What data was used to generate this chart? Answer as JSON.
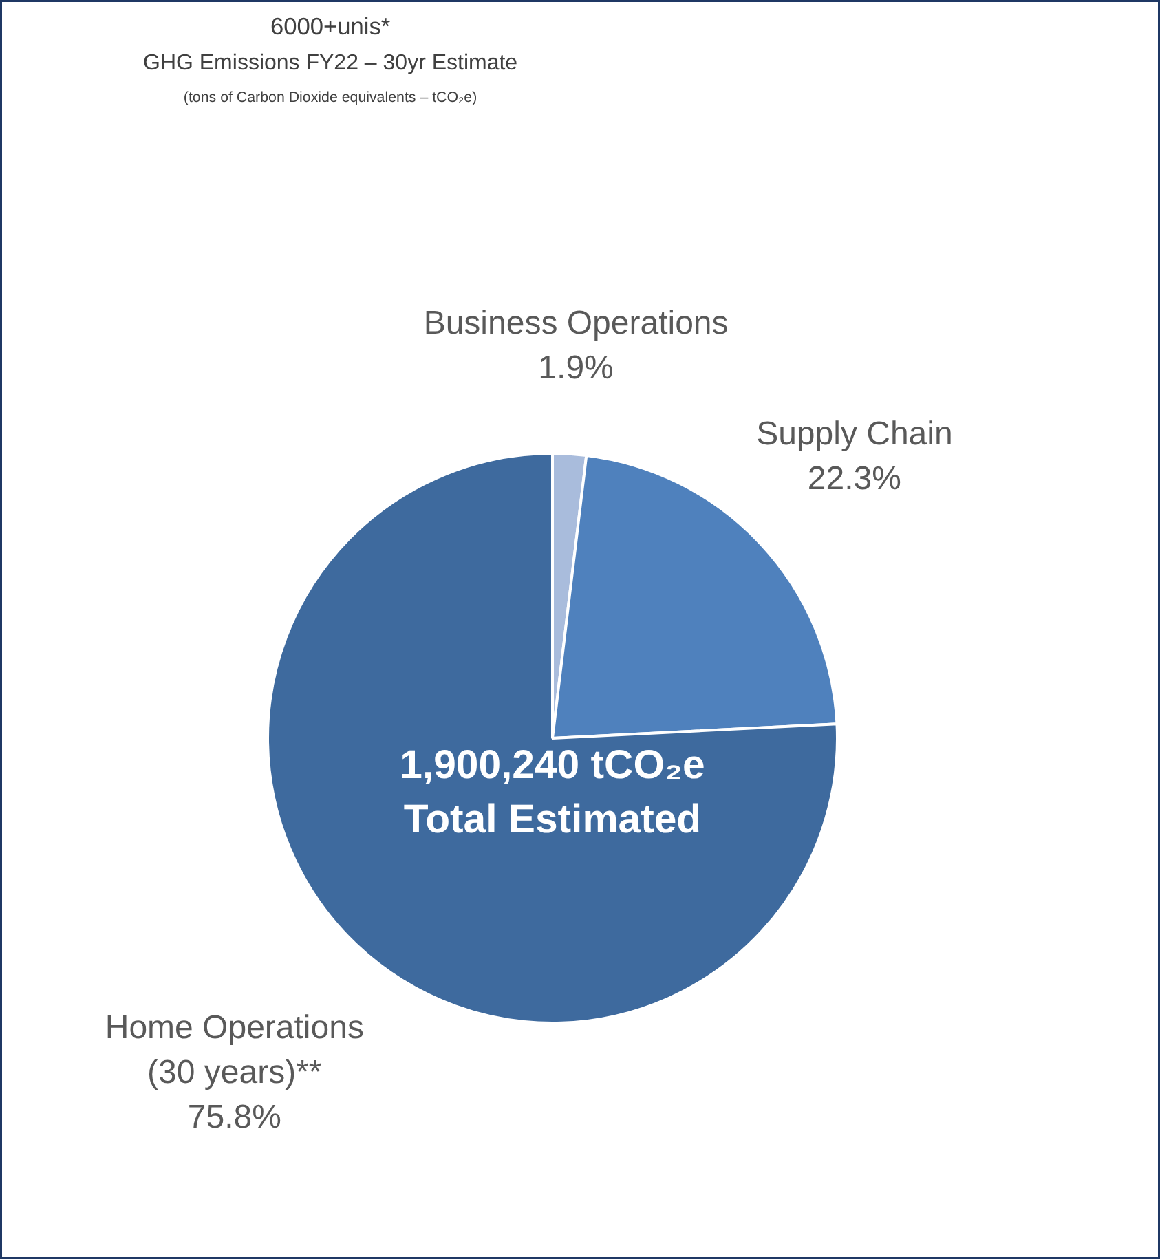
{
  "chart_data": {
    "type": "pie",
    "title": "6000+unis*",
    "subtitle": "GHG Emissions FY22 – 30yr Estimate",
    "annotations": [
      "(tons of Carbon Dioxide equivalents – tCO₂e)",
      "1,900,240 tCO₂e\nTotal Estimated"
    ],
    "categories": [
      "Business Operations",
      "Supply Chain",
      "Home Operations\n(30 years)**"
    ],
    "values": [
      1.9,
      22.3,
      75.8
    ],
    "value_labels": [
      "1.9%",
      "22.3%",
      "75.8%"
    ],
    "colors": [
      "#a9bcdc",
      "#4f81bd",
      "#3e6a9e"
    ]
  }
}
